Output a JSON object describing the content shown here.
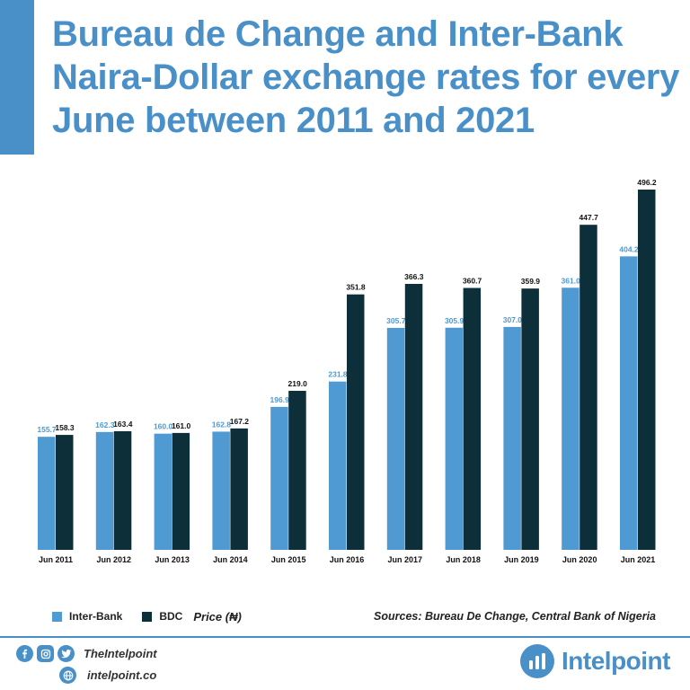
{
  "title": "Bureau de Change and Inter-Bank Naira-Dollar exchange rates for every June between 2011 and 2021",
  "colors": {
    "accent": "#4a90c8",
    "inter_bank": "#4f9ad2",
    "bdc": "#0c2f3a",
    "inter_bank_label": "#4f9ad2",
    "bdc_label": "#111111"
  },
  "chart_data": {
    "type": "bar",
    "categories": [
      "Jun 2011",
      "Jun 2012",
      "Jun 2013",
      "Jun 2014",
      "Jun 2015",
      "Jun 2016",
      "Jun 2017",
      "Jun 2018",
      "Jun 2019",
      "Jun 2020",
      "Jun 2021"
    ],
    "series": [
      {
        "name": "Inter-Bank",
        "values": [
          155.7,
          162.3,
          160.0,
          162.8,
          196.9,
          231.8,
          305.7,
          305.9,
          307.0,
          361.0,
          404.2
        ]
      },
      {
        "name": "BDC",
        "values": [
          158.3,
          163.4,
          161.0,
          167.2,
          219.0,
          351.8,
          366.3,
          360.7,
          359.9,
          447.7,
          496.2
        ]
      }
    ],
    "ylim": [
      0,
      496.2
    ],
    "grid": false,
    "legend": "bottom-left"
  },
  "legend": {
    "inter_bank": "Inter-Bank",
    "bdc": "BDC",
    "unit": "Price (₦)"
  },
  "sources": "Sources: Bureau De Change, Central Bank of Nigeria",
  "footer": {
    "handle": "TheIntelpoint",
    "site": "intelpoint.co",
    "brand": "Intelpoint"
  },
  "icons": [
    "facebook-icon",
    "instagram-icon",
    "twitter-icon",
    "globe-icon",
    "intelpoint-logo-icon"
  ]
}
